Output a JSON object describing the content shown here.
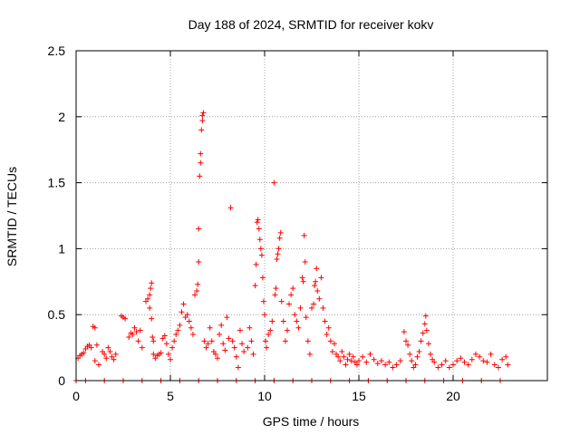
{
  "chart_data": {
    "type": "scatter",
    "title": "Day 188 of 2024, SRMTID for receiver kokv",
    "xlabel": "GPS time / hours",
    "ylabel": "SRMTID / TECUs",
    "xlim": [
      0,
      25
    ],
    "ylim": [
      0,
      2.5
    ],
    "xticks": [
      0,
      5,
      10,
      15,
      20
    ],
    "yticks": [
      0,
      0.5,
      1,
      1.5,
      2,
      2.5
    ],
    "ytick_labels": [
      "0",
      "0.5",
      "1",
      "1.5",
      "2",
      "2.5"
    ],
    "grid": true,
    "marker": "+",
    "series_color": "#ff0000",
    "series": [
      {
        "name": "SRMTID",
        "points": [
          [
            0.0,
            0.0
          ],
          [
            0.1,
            0.17
          ],
          [
            0.2,
            0.19
          ],
          [
            0.3,
            0.2
          ],
          [
            0.4,
            0.21
          ],
          [
            0.5,
            0.24
          ],
          [
            0.6,
            0.26
          ],
          [
            0.7,
            0.27
          ],
          [
            0.8,
            0.25
          ],
          [
            0.9,
            0.41
          ],
          [
            1.0,
            0.4
          ],
          [
            1.1,
            0.27
          ],
          [
            1.0,
            0.15
          ],
          [
            1.2,
            0.12
          ],
          [
            1.4,
            0.22
          ],
          [
            1.5,
            0.2
          ],
          [
            1.6,
            0.17
          ],
          [
            1.7,
            0.25
          ],
          [
            1.8,
            0.22
          ],
          [
            1.9,
            0.18
          ],
          [
            2.0,
            0.16
          ],
          [
            2.1,
            0.2
          ],
          [
            2.4,
            0.49
          ],
          [
            2.5,
            0.48
          ],
          [
            2.6,
            0.47
          ],
          [
            2.8,
            0.33
          ],
          [
            2.9,
            0.36
          ],
          [
            3.0,
            0.35
          ],
          [
            3.1,
            0.4
          ],
          [
            3.2,
            0.37
          ],
          [
            3.3,
            0.3
          ],
          [
            3.4,
            0.38
          ],
          [
            3.5,
            0.25
          ],
          [
            3.7,
            0.6
          ],
          [
            3.8,
            0.62
          ],
          [
            3.9,
            0.65
          ],
          [
            3.95,
            0.7
          ],
          [
            4.0,
            0.74
          ],
          [
            3.9,
            0.55
          ],
          [
            4.0,
            0.47
          ],
          [
            4.05,
            0.33
          ],
          [
            4.1,
            0.3
          ],
          [
            4.1,
            0.2
          ],
          [
            4.2,
            0.17
          ],
          [
            4.3,
            0.19
          ],
          [
            4.4,
            0.2
          ],
          [
            4.5,
            0.21
          ],
          [
            4.6,
            0.32
          ],
          [
            4.7,
            0.34
          ],
          [
            4.8,
            0.28
          ],
          [
            4.9,
            0.2
          ],
          [
            5.0,
            0.16
          ],
          [
            5.1,
            0.25
          ],
          [
            5.2,
            0.3
          ],
          [
            5.3,
            0.35
          ],
          [
            5.4,
            0.38
          ],
          [
            5.5,
            0.42
          ],
          [
            5.6,
            0.52
          ],
          [
            5.7,
            0.58
          ],
          [
            5.8,
            0.48
          ],
          [
            5.9,
            0.5
          ],
          [
            6.0,
            0.45
          ],
          [
            6.1,
            0.4
          ],
          [
            6.2,
            0.35
          ],
          [
            6.3,
            0.65
          ],
          [
            6.4,
            0.68
          ],
          [
            6.45,
            0.73
          ],
          [
            6.5,
            0.9
          ],
          [
            6.5,
            1.15
          ],
          [
            6.55,
            1.55
          ],
          [
            6.6,
            1.65
          ],
          [
            6.6,
            1.72
          ],
          [
            6.65,
            1.9
          ],
          [
            6.7,
            1.97
          ],
          [
            6.7,
            2.01
          ],
          [
            6.75,
            2.03
          ],
          [
            6.8,
            0.3
          ],
          [
            6.9,
            0.25
          ],
          [
            7.0,
            0.28
          ],
          [
            7.1,
            0.4
          ],
          [
            7.2,
            0.3
          ],
          [
            7.3,
            0.22
          ],
          [
            7.4,
            0.2
          ],
          [
            7.5,
            0.17
          ],
          [
            7.6,
            0.35
          ],
          [
            7.7,
            0.42
          ],
          [
            7.8,
            0.28
          ],
          [
            7.9,
            0.23
          ],
          [
            8.0,
            0.48
          ],
          [
            8.1,
            0.32
          ],
          [
            8.2,
            1.31
          ],
          [
            8.3,
            0.3
          ],
          [
            8.4,
            0.25
          ],
          [
            8.5,
            0.18
          ],
          [
            8.6,
            0.1
          ],
          [
            8.7,
            0.38
          ],
          [
            8.8,
            0.28
          ],
          [
            8.9,
            0.22
          ],
          [
            9.1,
            0.25
          ],
          [
            9.2,
            0.4
          ],
          [
            9.3,
            0.3
          ],
          [
            9.4,
            0.2
          ],
          [
            9.5,
            0.72
          ],
          [
            9.55,
            0.88
          ],
          [
            9.6,
            1.2
          ],
          [
            9.65,
            1.22
          ],
          [
            9.7,
            1.15
          ],
          [
            9.75,
            1.07
          ],
          [
            9.8,
            1.0
          ],
          [
            9.85,
            0.95
          ],
          [
            9.9,
            0.78
          ],
          [
            9.95,
            0.6
          ],
          [
            10.0,
            0.5
          ],
          [
            10.05,
            0.3
          ],
          [
            10.1,
            0.25
          ],
          [
            10.2,
            0.35
          ],
          [
            10.3,
            0.38
          ],
          [
            10.4,
            0.45
          ],
          [
            10.5,
            1.5
          ],
          [
            10.55,
            0.65
          ],
          [
            10.6,
            0.7
          ],
          [
            10.65,
            0.92
          ],
          [
            10.7,
            0.96
          ],
          [
            10.75,
            1.0
          ],
          [
            10.8,
            1.08
          ],
          [
            10.85,
            1.12
          ],
          [
            10.9,
            0.6
          ],
          [
            11.0,
            0.45
          ],
          [
            11.1,
            0.3
          ],
          [
            11.2,
            0.38
          ],
          [
            11.3,
            0.58
          ],
          [
            11.4,
            0.65
          ],
          [
            11.5,
            0.7
          ],
          [
            11.6,
            0.5
          ],
          [
            11.7,
            0.45
          ],
          [
            11.8,
            0.4
          ],
          [
            11.9,
            0.55
          ],
          [
            12.0,
            0.78
          ],
          [
            12.05,
            0.75
          ],
          [
            12.1,
            1.1
          ],
          [
            12.15,
            0.9
          ],
          [
            12.2,
            0.48
          ],
          [
            12.3,
            0.3
          ],
          [
            12.4,
            0.2
          ],
          [
            12.5,
            0.55
          ],
          [
            12.6,
            0.58
          ],
          [
            12.65,
            0.72
          ],
          [
            12.7,
            0.75
          ],
          [
            12.75,
            0.85
          ],
          [
            12.8,
            0.68
          ],
          [
            12.9,
            0.62
          ],
          [
            13.0,
            0.78
          ],
          [
            13.1,
            0.55
          ],
          [
            13.2,
            0.45
          ],
          [
            13.3,
            0.35
          ],
          [
            13.4,
            0.4
          ],
          [
            13.5,
            0.3
          ],
          [
            13.6,
            0.22
          ],
          [
            13.7,
            0.28
          ],
          [
            13.8,
            0.2
          ],
          [
            13.9,
            0.18
          ],
          [
            14.0,
            0.15
          ],
          [
            14.1,
            0.22
          ],
          [
            14.2,
            0.18
          ],
          [
            14.3,
            0.12
          ],
          [
            14.4,
            0.16
          ],
          [
            14.5,
            0.2
          ],
          [
            14.6,
            0.15
          ],
          [
            14.7,
            0.18
          ],
          [
            14.8,
            0.14
          ],
          [
            14.9,
            0.12
          ],
          [
            15.0,
            0.15
          ],
          [
            15.2,
            0.18
          ],
          [
            15.4,
            0.14
          ],
          [
            15.6,
            0.2
          ],
          [
            15.8,
            0.16
          ],
          [
            16.0,
            0.13
          ],
          [
            16.2,
            0.15
          ],
          [
            16.4,
            0.12
          ],
          [
            16.6,
            0.14
          ],
          [
            16.8,
            0.1
          ],
          [
            17.0,
            0.12
          ],
          [
            17.2,
            0.15
          ],
          [
            17.4,
            0.37
          ],
          [
            17.5,
            0.3
          ],
          [
            17.6,
            0.27
          ],
          [
            17.7,
            0.2
          ],
          [
            17.8,
            0.15
          ],
          [
            17.9,
            0.1
          ],
          [
            18.0,
            0.12
          ],
          [
            18.1,
            0.18
          ],
          [
            18.2,
            0.22
          ],
          [
            18.3,
            0.3
          ],
          [
            18.4,
            0.36
          ],
          [
            18.5,
            0.43
          ],
          [
            18.55,
            0.49
          ],
          [
            18.6,
            0.38
          ],
          [
            18.7,
            0.28
          ],
          [
            18.8,
            0.2
          ],
          [
            18.9,
            0.16
          ],
          [
            19.0,
            0.14
          ],
          [
            19.2,
            0.1
          ],
          [
            19.4,
            0.12
          ],
          [
            19.6,
            0.15
          ],
          [
            19.8,
            0.1
          ],
          [
            20.0,
            0.12
          ],
          [
            20.2,
            0.15
          ],
          [
            20.4,
            0.17
          ],
          [
            20.6,
            0.14
          ],
          [
            20.8,
            0.12
          ],
          [
            21.0,
            0.16
          ],
          [
            21.2,
            0.2
          ],
          [
            21.4,
            0.18
          ],
          [
            21.6,
            0.15
          ],
          [
            21.8,
            0.14
          ],
          [
            22.0,
            0.2
          ],
          [
            22.2,
            0.12
          ],
          [
            22.4,
            0.1
          ],
          [
            22.6,
            0.16
          ],
          [
            22.8,
            0.18
          ],
          [
            22.9,
            0.12
          ],
          [
            0.5,
            0.0
          ],
          [
            1.5,
            0.0
          ],
          [
            2.5,
            0.0
          ],
          [
            3.5,
            0.0
          ],
          [
            4.5,
            0.0
          ],
          [
            5.5,
            0.0
          ],
          [
            6.5,
            0.0
          ],
          [
            7.5,
            0.0
          ],
          [
            8.5,
            0.0
          ],
          [
            9.5,
            0.0
          ],
          [
            10.5,
            0.0
          ],
          [
            11.5,
            0.0
          ],
          [
            12.5,
            0.0
          ],
          [
            13.5,
            0.0
          ],
          [
            14.5,
            0.0
          ],
          [
            15.5,
            0.0
          ],
          [
            16.5,
            0.0
          ],
          [
            17.5,
            0.0
          ],
          [
            18.5,
            0.0
          ],
          [
            19.5,
            0.0
          ],
          [
            20.5,
            0.0
          ],
          [
            21.5,
            0.0
          ],
          [
            22.5,
            0.0
          ]
        ]
      }
    ]
  }
}
